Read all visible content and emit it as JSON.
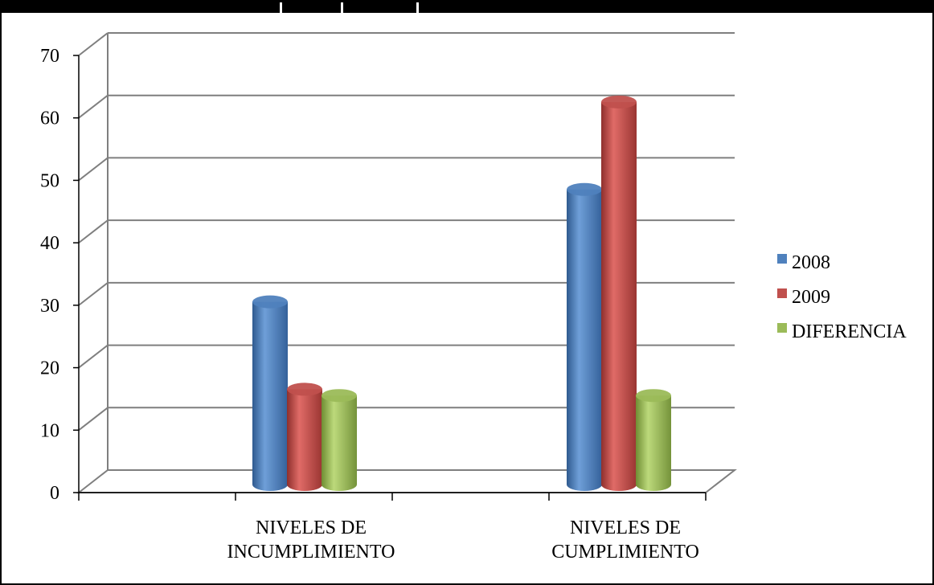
{
  "colors": {
    "series_2008": "#4f81bd",
    "series_2009": "#c0504d",
    "series_diferencia": "#9bbb59",
    "gridline": "#7f7f7f",
    "background": "#ffffff"
  },
  "chart_data": {
    "type": "bar",
    "style": "3d-cylinder",
    "title": "",
    "xlabel": "",
    "ylabel": "",
    "categories": [
      [
        "NIVELES DE",
        "INCUMPLIMIENTO"
      ],
      [
        "NIVELES DE",
        "CUMPLIMIENTO"
      ]
    ],
    "series": [
      {
        "name": "2008",
        "values": [
          29,
          47
        ]
      },
      {
        "name": "2009",
        "values": [
          15,
          61
        ]
      },
      {
        "name": "DIFERENCIA",
        "values": [
          14,
          14
        ]
      }
    ],
    "ylim": [
      0,
      70
    ],
    "yticks": [
      "0",
      "10",
      "20",
      "30",
      "40",
      "50",
      "60",
      "70"
    ],
    "grid": true,
    "legend_position": "right"
  }
}
